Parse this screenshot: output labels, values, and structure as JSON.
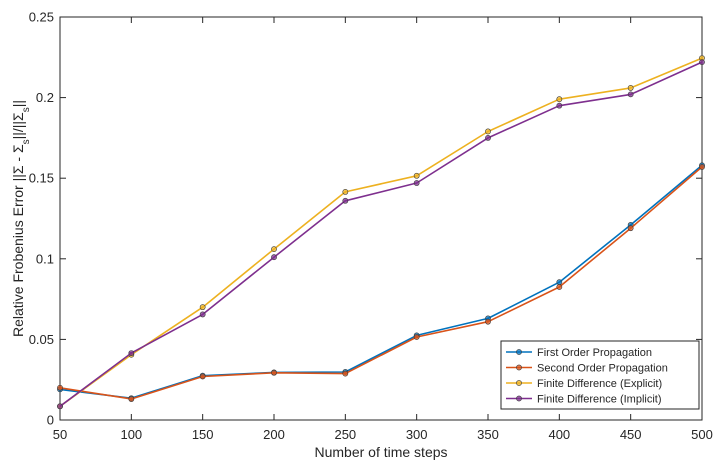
{
  "chart_data": {
    "type": "line",
    "xlabel": "Number of time steps",
    "ylabel": "Relative Frobenius Error  ||Σ - Σ_s||/||Σ_s||",
    "xlim": [
      50,
      500
    ],
    "ylim": [
      0,
      0.25
    ],
    "x": [
      50,
      100,
      150,
      200,
      250,
      300,
      350,
      400,
      450,
      500
    ],
    "x_ticks": [
      50,
      100,
      150,
      200,
      250,
      300,
      350,
      400,
      450,
      500
    ],
    "y_ticks": [
      0,
      0.05,
      0.1,
      0.15,
      0.2,
      0.25
    ],
    "y_tick_labels": [
      "0",
      "0.05",
      "0.1",
      "0.15",
      "0.2",
      "0.25"
    ],
    "grid": false,
    "legend_position": "bottom-right",
    "series": [
      {
        "name": "First Order Propagation",
        "color": "#0072BD",
        "values": [
          0.019,
          0.0135,
          0.0275,
          0.0295,
          0.0298,
          0.0525,
          0.063,
          0.0855,
          0.121,
          0.158
        ]
      },
      {
        "name": "Second Order Propagation",
        "color": "#D95319",
        "values": [
          0.02,
          0.013,
          0.027,
          0.0293,
          0.0288,
          0.0515,
          0.061,
          0.0825,
          0.119,
          0.157
        ]
      },
      {
        "name": "Finite Difference (Explicit)",
        "color": "#EDB120",
        "values": [
          0.0085,
          0.0405,
          0.07,
          0.106,
          0.1415,
          0.1515,
          0.179,
          0.199,
          0.206,
          0.2245
        ]
      },
      {
        "name": "Finite Difference (Implicit)",
        "color": "#7E2F8E",
        "values": [
          0.0085,
          0.0415,
          0.0655,
          0.101,
          0.136,
          0.147,
          0.175,
          0.195,
          0.202,
          0.222
        ]
      }
    ]
  }
}
